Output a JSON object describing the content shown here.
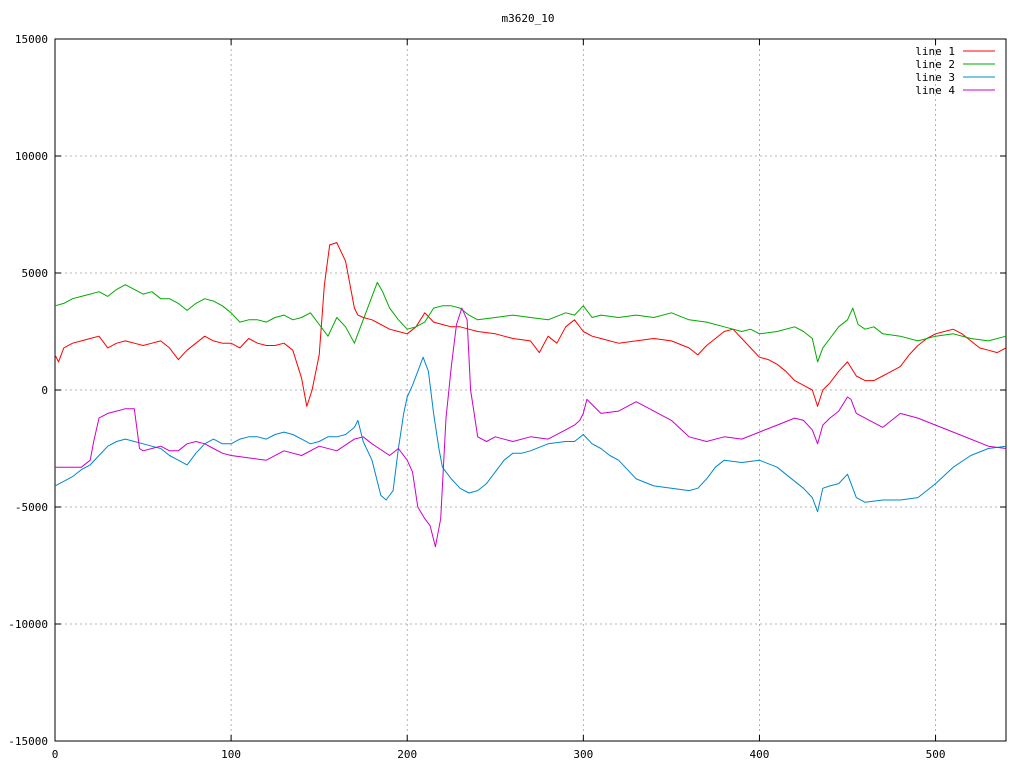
{
  "chart_data": {
    "type": "line",
    "title": "m3620_10",
    "xlabel": "",
    "ylabel": "",
    "xlim": [
      0,
      540
    ],
    "ylim": [
      -15000,
      15000
    ],
    "x_ticks": [
      0,
      100,
      200,
      300,
      400,
      500
    ],
    "y_ticks": [
      -15000,
      -10000,
      -5000,
      0,
      5000,
      10000,
      15000
    ],
    "grid": true,
    "legend_position": "top-right",
    "series": [
      {
        "name": "line 1",
        "color": "#ff0000",
        "x": [
          0,
          2,
          5,
          10,
          15,
          20,
          25,
          30,
          35,
          40,
          45,
          50,
          55,
          60,
          65,
          70,
          75,
          80,
          85,
          90,
          95,
          100,
          105,
          110,
          115,
          120,
          125,
          130,
          135,
          140,
          143,
          146,
          150,
          153,
          156,
          160,
          165,
          170,
          172,
          175,
          180,
          185,
          190,
          195,
          200,
          205,
          210,
          215,
          220,
          225,
          230,
          235,
          240,
          250,
          260,
          270,
          275,
          280,
          285,
          290,
          295,
          300,
          305,
          310,
          320,
          330,
          340,
          350,
          360,
          365,
          370,
          375,
          380,
          385,
          390,
          395,
          400,
          405,
          410,
          415,
          420,
          425,
          430,
          433,
          436,
          440,
          445,
          450,
          455,
          460,
          465,
          470,
          475,
          480,
          485,
          490,
          495,
          500,
          505,
          510,
          515,
          520,
          525,
          530,
          535,
          540
        ],
        "values": [
          1500,
          1200,
          1800,
          2000,
          2100,
          2200,
          2300,
          1800,
          2000,
          2100,
          2000,
          1900,
          2000,
          2100,
          1800,
          1300,
          1700,
          2000,
          2300,
          2100,
          2000,
          2000,
          1800,
          2200,
          2000,
          1900,
          1900,
          2000,
          1700,
          500,
          -700,
          0,
          1500,
          4500,
          6200,
          6300,
          5500,
          3500,
          3200,
          3100,
          3000,
          2800,
          2600,
          2500,
          2400,
          2700,
          3300,
          2900,
          2800,
          2700,
          2700,
          2600,
          2500,
          2400,
          2200,
          2100,
          1600,
          2300,
          2000,
          2700,
          3000,
          2500,
          2300,
          2200,
          2000,
          2100,
          2200,
          2100,
          1800,
          1500,
          1900,
          2200,
          2500,
          2600,
          2200,
          1800,
          1400,
          1300,
          1100,
          800,
          400,
          200,
          0,
          -700,
          0,
          300,
          800,
          1200,
          600,
          400,
          400,
          600,
          800,
          1000,
          1500,
          1900,
          2200,
          2400,
          2500,
          2600,
          2400,
          2100,
          1800,
          1700,
          1600,
          1800
        ]
      },
      {
        "name": "line 2",
        "color": "#00aa00",
        "x": [
          0,
          5,
          10,
          15,
          20,
          25,
          30,
          35,
          40,
          45,
          50,
          55,
          60,
          65,
          70,
          75,
          80,
          85,
          90,
          95,
          100,
          105,
          110,
          115,
          120,
          125,
          130,
          135,
          140,
          145,
          150,
          155,
          160,
          165,
          170,
          175,
          180,
          183,
          186,
          190,
          195,
          200,
          205,
          210,
          215,
          220,
          225,
          230,
          235,
          240,
          250,
          260,
          270,
          280,
          290,
          295,
          300,
          305,
          310,
          320,
          330,
          340,
          350,
          360,
          370,
          380,
          385,
          390,
          395,
          400,
          410,
          420,
          425,
          430,
          433,
          436,
          440,
          445,
          450,
          453,
          456,
          460,
          465,
          470,
          480,
          490,
          500,
          510,
          520,
          530,
          540
        ],
        "values": [
          3600,
          3700,
          3900,
          4000,
          4100,
          4200,
          4000,
          4300,
          4500,
          4300,
          4100,
          4200,
          3900,
          3900,
          3700,
          3400,
          3700,
          3900,
          3800,
          3600,
          3300,
          2900,
          3000,
          3000,
          2900,
          3100,
          3200,
          3000,
          3100,
          3300,
          2800,
          2300,
          3100,
          2700,
          2000,
          3000,
          4000,
          4600,
          4200,
          3500,
          3000,
          2600,
          2700,
          2900,
          3500,
          3600,
          3600,
          3500,
          3200,
          3000,
          3100,
          3200,
          3100,
          3000,
          3300,
          3200,
          3600,
          3100,
          3200,
          3100,
          3200,
          3100,
          3300,
          3000,
          2900,
          2700,
          2600,
          2500,
          2600,
          2400,
          2500,
          2700,
          2500,
          2200,
          1200,
          1800,
          2200,
          2700,
          3000,
          3500,
          2800,
          2600,
          2700,
          2400,
          2300,
          2100,
          2300,
          2400,
          2200,
          2100,
          2300
        ]
      },
      {
        "name": "line 3",
        "color": "#0088cc",
        "x": [
          0,
          5,
          10,
          15,
          20,
          25,
          30,
          35,
          40,
          45,
          50,
          55,
          60,
          65,
          70,
          75,
          80,
          85,
          90,
          95,
          100,
          105,
          110,
          115,
          120,
          125,
          130,
          135,
          140,
          145,
          150,
          155,
          160,
          165,
          170,
          172,
          175,
          180,
          185,
          188,
          192,
          195,
          198,
          200,
          203,
          206,
          209,
          212,
          215,
          218,
          220,
          225,
          230,
          235,
          240,
          245,
          250,
          255,
          260,
          265,
          270,
          280,
          290,
          295,
          300,
          305,
          310,
          315,
          320,
          330,
          340,
          350,
          360,
          365,
          370,
          375,
          380,
          390,
          400,
          410,
          420,
          425,
          430,
          433,
          436,
          440,
          445,
          450,
          455,
          460,
          470,
          480,
          490,
          500,
          510,
          520,
          530,
          540
        ],
        "values": [
          -4100,
          -3900,
          -3700,
          -3400,
          -3200,
          -2800,
          -2400,
          -2200,
          -2100,
          -2200,
          -2300,
          -2400,
          -2500,
          -2800,
          -3000,
          -3200,
          -2700,
          -2300,
          -2100,
          -2300,
          -2300,
          -2100,
          -2000,
          -2000,
          -2100,
          -1900,
          -1800,
          -1900,
          -2100,
          -2300,
          -2200,
          -2000,
          -2000,
          -1900,
          -1600,
          -1300,
          -2200,
          -3000,
          -4500,
          -4700,
          -4300,
          -2500,
          -1000,
          -300,
          200,
          800,
          1400,
          800,
          -1000,
          -2500,
          -3300,
          -3800,
          -4200,
          -4400,
          -4300,
          -4000,
          -3500,
          -3000,
          -2700,
          -2700,
          -2600,
          -2300,
          -2200,
          -2200,
          -1900,
          -2300,
          -2500,
          -2800,
          -3000,
          -3800,
          -4100,
          -4200,
          -4300,
          -4200,
          -3800,
          -3300,
          -3000,
          -3100,
          -3000,
          -3300,
          -3900,
          -4200,
          -4600,
          -5200,
          -4200,
          -4100,
          -4000,
          -3600,
          -4600,
          -4800,
          -4700,
          -4700,
          -4600,
          -4000,
          -3300,
          -2800,
          -2500,
          -2400
        ]
      },
      {
        "name": "line 4",
        "color": "#cc00cc",
        "x": [
          0,
          5,
          10,
          15,
          20,
          22,
          25,
          30,
          35,
          40,
          45,
          48,
          50,
          55,
          60,
          65,
          70,
          75,
          80,
          85,
          90,
          95,
          100,
          110,
          120,
          130,
          140,
          150,
          160,
          170,
          175,
          180,
          190,
          195,
          200,
          203,
          206,
          210,
          213,
          216,
          219,
          222,
          225,
          228,
          231,
          234,
          236,
          240,
          245,
          250,
          260,
          270,
          280,
          290,
          295,
          298,
          300,
          302,
          310,
          320,
          330,
          340,
          350,
          360,
          370,
          380,
          390,
          400,
          410,
          420,
          425,
          430,
          433,
          436,
          440,
          445,
          450,
          452,
          455,
          460,
          470,
          480,
          490,
          500,
          510,
          520,
          530,
          540
        ],
        "values": [
          -3300,
          -3300,
          -3300,
          -3300,
          -3000,
          -2200,
          -1200,
          -1000,
          -900,
          -800,
          -800,
          -2500,
          -2600,
          -2500,
          -2400,
          -2600,
          -2600,
          -2300,
          -2200,
          -2300,
          -2500,
          -2700,
          -2800,
          -2900,
          -3000,
          -2600,
          -2800,
          -2400,
          -2600,
          -2100,
          -2000,
          -2300,
          -2800,
          -2500,
          -3000,
          -3500,
          -5000,
          -5500,
          -5800,
          -6700,
          -5500,
          -1200,
          1000,
          2800,
          3500,
          3000,
          0,
          -2000,
          -2200,
          -2000,
          -2200,
          -2000,
          -2100,
          -1700,
          -1500,
          -1300,
          -1000,
          -400,
          -1000,
          -900,
          -500,
          -900,
          -1300,
          -2000,
          -2200,
          -2000,
          -2100,
          -1800,
          -1500,
          -1200,
          -1300,
          -1700,
          -2300,
          -1500,
          -1200,
          -900,
          -300,
          -400,
          -1000,
          -1200,
          -1600,
          -1000,
          -1200,
          -1500,
          -1800,
          -2100,
          -2400,
          -2500
        ]
      }
    ]
  }
}
